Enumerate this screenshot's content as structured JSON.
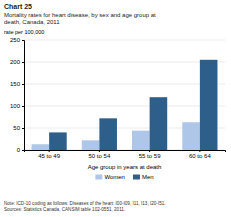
{
  "chart_data": {
    "type": "bar",
    "title": "Chart 25",
    "subtitle": [
      "Mortality rates for heart disease, by sex and age group at",
      "death, Canada, 2011"
    ],
    "ylabel": "rate per 100,000",
    "xlabel": "Age group in years at death",
    "categories": [
      "45 to 49",
      "50 to 54",
      "55 to 59",
      "60 to 64"
    ],
    "series": [
      {
        "name": "Women",
        "color": "#aec6e8",
        "values": [
          13,
          22,
          44,
          63
        ]
      },
      {
        "name": "Men",
        "color": "#2e5f8a",
        "values": [
          40,
          72,
          120,
          205
        ]
      }
    ],
    "ylim": [
      0,
      250
    ],
    "yticks": [
      0,
      50,
      100,
      150,
      200,
      250
    ],
    "grid": true,
    "legend": "bottom",
    "annotations": [
      "Note: ICD-10 coding as follows: Diseases of the heart: I00-I09, I11, I13, I20-I51.",
      "Sources: Statistics Canada, CANSIM table 102-0551, 2011."
    ]
  }
}
